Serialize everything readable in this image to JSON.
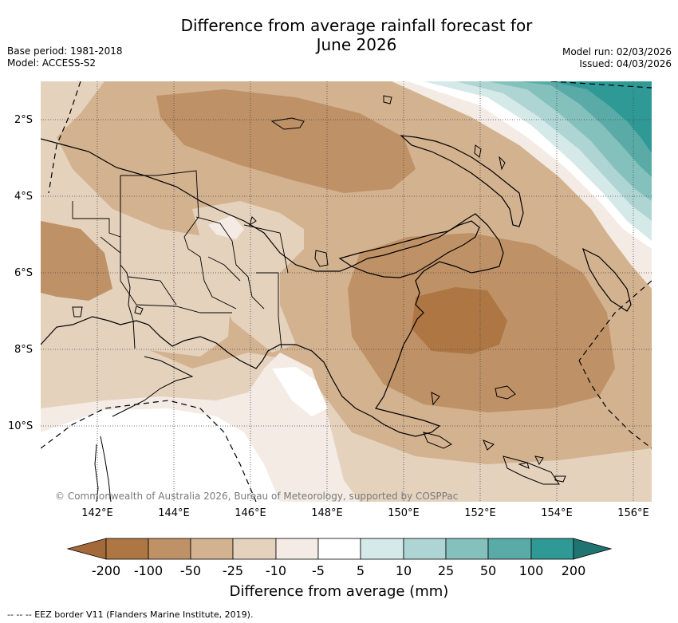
{
  "title": {
    "line1": "Difference from average rainfall forecast for",
    "line2": "June 2026"
  },
  "meta_left": {
    "base_period": "Base period: 1981-2018",
    "model": "Model: ACCESS-S2"
  },
  "meta_right": {
    "model_run": "Model run: 02/03/2026",
    "issued": "Issued: 04/03/2026"
  },
  "latitude_labels": [
    "2°S",
    "4°S",
    "6°S",
    "8°S",
    "10°S"
  ],
  "longitude_labels": [
    "142°E",
    "144°E",
    "146°E",
    "148°E",
    "150°E",
    "152°E",
    "154°E",
    "156°E"
  ],
  "copyright": "© Commonwealth of Australia 2026, Bureau of Meteorology, supported by COSPPac",
  "colorbar": {
    "labels": [
      "-200",
      "-100",
      "-50",
      "-25",
      "-10",
      "-5",
      "5",
      "10",
      "25",
      "50",
      "100",
      "200"
    ],
    "colors": [
      "#a4693a",
      "#ae7643",
      "#bf9166",
      "#d3b28f",
      "#e5d2bd",
      "#f3ebe4",
      "#ffffff",
      "#d5eae8",
      "#aed5d3",
      "#84c1bd",
      "#5aaba7",
      "#2f9996",
      "#1f7472"
    ],
    "title": "Difference from average (mm)"
  },
  "footnote": "--  --  -- EEZ border V11 (Flanders Marine Institute, 2019)."
}
